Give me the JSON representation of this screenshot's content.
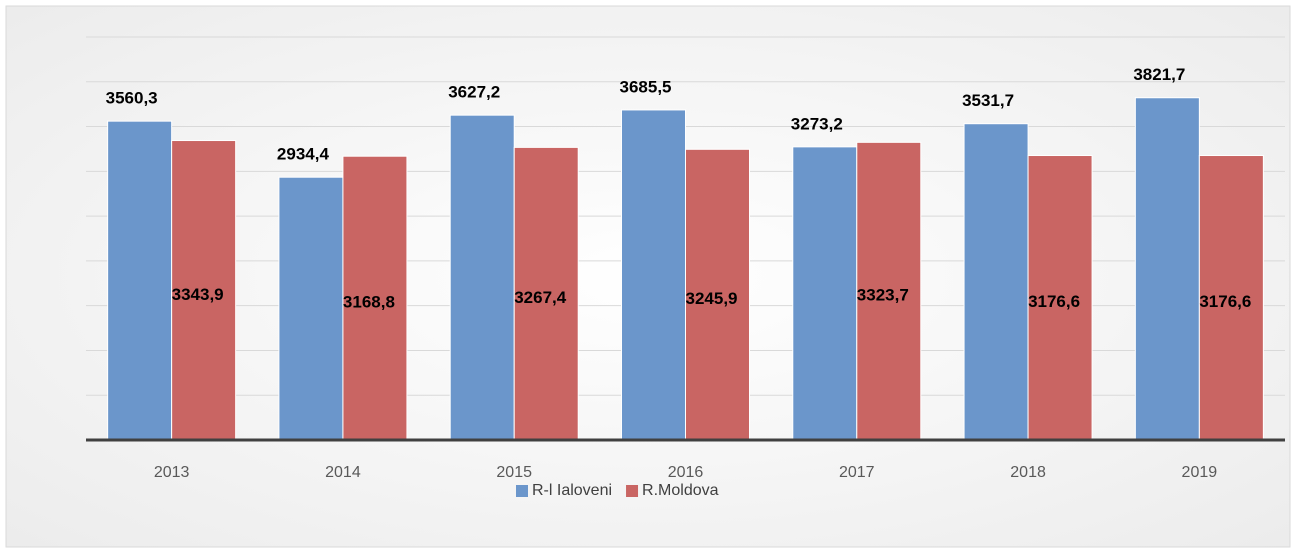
{
  "chart_data": {
    "type": "bar",
    "categories": [
      "2013",
      "2014",
      "2015",
      "2016",
      "2017",
      "2018",
      "2019"
    ],
    "series": [
      {
        "name": "R-l Ialoveni",
        "color": "#6b96cb",
        "values": [
          3560.3,
          2934.4,
          3627.2,
          3685.5,
          3273.2,
          3531.7,
          3821.7
        ],
        "value_labels": [
          "3560,3",
          "2934,4",
          "3627,2",
          "3685,5",
          "3273,2",
          "3531,7",
          "3821,7"
        ]
      },
      {
        "name": "R.Moldova",
        "color": "#c96563",
        "values": [
          3343.9,
          3168.8,
          3267.4,
          3245.9,
          3323.7,
          3176.6,
          3176.6
        ],
        "value_labels": [
          "3343,9",
          "3168,8",
          "3267,4",
          "3245,9",
          "3323,7",
          "3176,6",
          "3176,6"
        ]
      }
    ],
    "ylim": [
      0,
      4500
    ],
    "yticks": [
      0,
      500,
      1000,
      1500,
      2000,
      2500,
      3000,
      3500,
      4000,
      4500
    ],
    "grid": true
  }
}
